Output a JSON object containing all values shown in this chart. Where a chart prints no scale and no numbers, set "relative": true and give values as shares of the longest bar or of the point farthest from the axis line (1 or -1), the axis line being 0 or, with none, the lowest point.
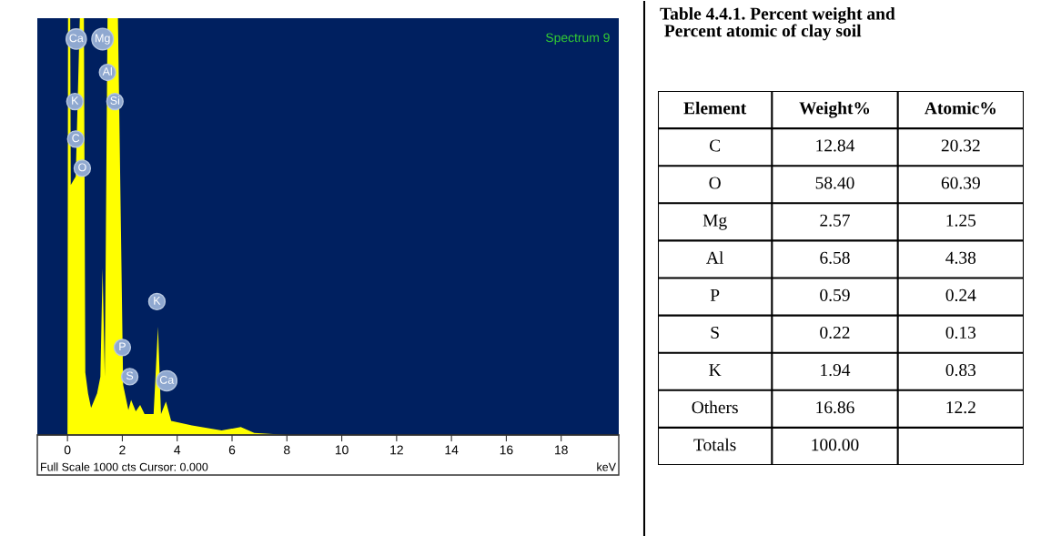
{
  "chart_data": [
    {
      "type": "area",
      "title": "Spectrum 9",
      "xlabel": "keV",
      "relative": true,
      "color": "#ffff00",
      "x": [
        -0.1,
        0.0,
        0.02,
        0.1,
        0.12,
        0.3,
        0.45,
        0.6,
        0.65,
        0.75,
        0.86,
        1.08,
        1.2,
        1.28,
        1.36,
        1.46,
        1.84,
        2.03,
        2.22,
        2.32,
        2.49,
        2.65,
        2.81,
        3.14,
        3.3,
        3.41,
        3.59,
        3.78,
        4.54,
        5.62,
        6.32,
        6.81,
        7.5,
        8.0,
        20.0
      ],
      "values": [
        0,
        0,
        1,
        1,
        0.6,
        0.62,
        1,
        1,
        0.15,
        0.1,
        0.065,
        0.1,
        0.14,
        0.4,
        0.14,
        1,
        1,
        0.12,
        0.06,
        0.084,
        0.057,
        0.072,
        0.05,
        0.05,
        0.26,
        0.05,
        0.08,
        0.034,
        0.023,
        0.011,
        0.019,
        0.005,
        0.002,
        0,
        0
      ],
      "xlim": [
        -1.1,
        20.1
      ],
      "xticks": [
        0,
        2,
        4,
        6,
        8,
        10,
        12,
        14,
        16,
        18
      ],
      "annotations": [
        {
          "text": "Ca",
          "x": 0.32,
          "y": 0.95
        },
        {
          "text": "Mg",
          "x": 1.28,
          "y": 0.95
        },
        {
          "text": "Al",
          "x": 1.46,
          "y": 0.87
        },
        {
          "text": "Si",
          "x": 1.73,
          "y": 0.8
        },
        {
          "text": "K",
          "x": 0.27,
          "y": 0.8
        },
        {
          "text": "C",
          "x": 0.3,
          "y": 0.71
        },
        {
          "text": "O",
          "x": 0.54,
          "y": 0.64
        },
        {
          "text": "K",
          "x": 3.26,
          "y": 0.32
        },
        {
          "text": "P",
          "x": 2.0,
          "y": 0.21
        },
        {
          "text": "S",
          "x": 2.27,
          "y": 0.14
        },
        {
          "text": "Ca",
          "x": 3.62,
          "y": 0.13
        },
        "Full Scale 1000 cts Cursor: 0.000"
      ]
    },
    {
      "type": "heatmap",
      "title": "Table 4.4.1. Percent weight and\n Percent atomic of clay soil",
      "ylabel": "Element",
      "categories": [
        "Weight%",
        "Atomic%"
      ],
      "y_categories": [
        "C",
        "O",
        "Mg",
        "Al",
        "P",
        "S",
        "K",
        "Others",
        "Totals"
      ],
      "data_labels": true,
      "cells": [
        [
          12.84,
          20.32
        ],
        [
          58.4,
          60.39
        ],
        [
          2.57,
          1.25
        ],
        [
          6.58,
          4.38
        ],
        [
          0.59,
          0.24
        ],
        [
          0.22,
          0.13
        ],
        [
          1.94,
          0.83
        ],
        [
          16.86,
          12.2
        ],
        [
          100.0,
          null
        ]
      ],
      "cell_labels": [
        [
          "12.84",
          "20.32"
        ],
        [
          "58.40",
          "60.39"
        ],
        [
          "2.57",
          "1.25"
        ],
        [
          "6.58",
          "4.38"
        ],
        [
          "0.59",
          "0.24"
        ],
        [
          "0.22",
          "0.13"
        ],
        [
          "1.94",
          "0.83"
        ],
        [
          "16.86",
          "12.2"
        ],
        [
          "100.00",
          null
        ]
      ]
    }
  ]
}
